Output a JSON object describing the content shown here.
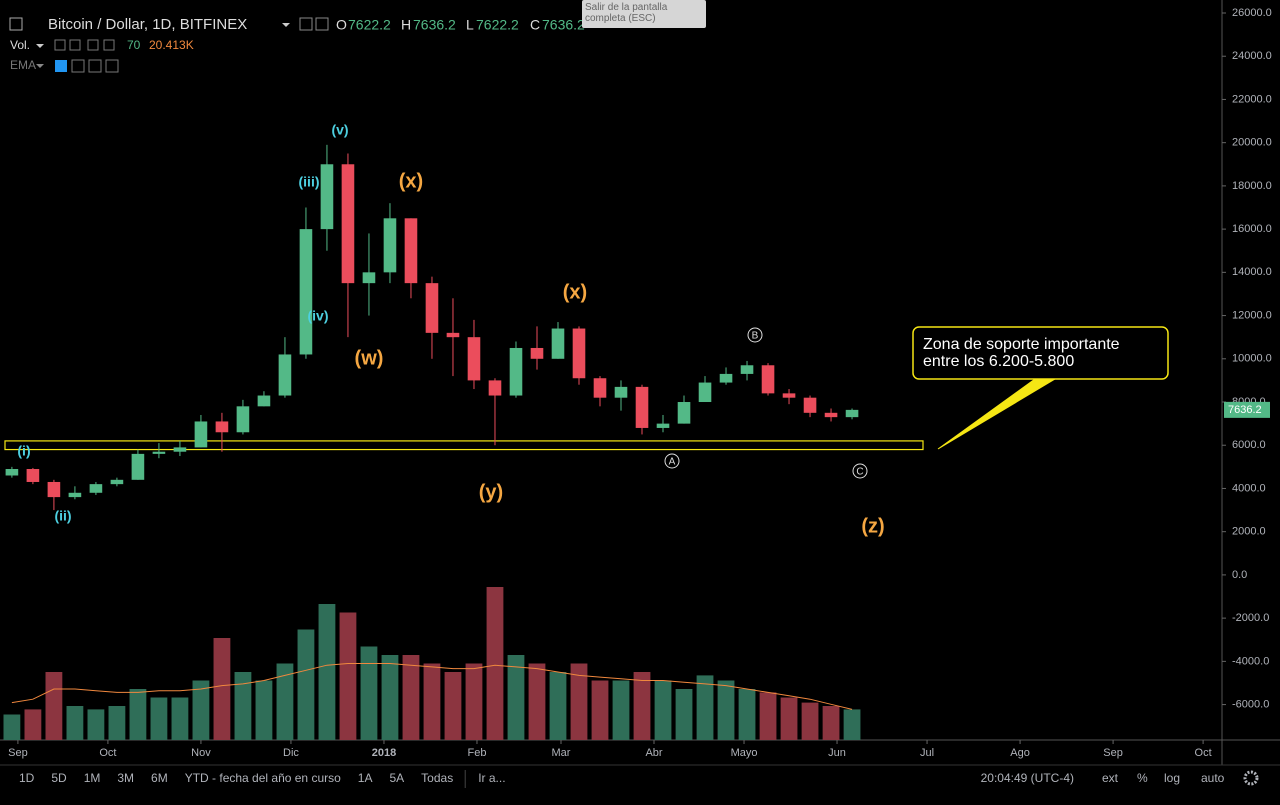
{
  "header": {
    "symbol": "Bitcoin / Dollar, 1D, BITFINEX",
    "o_label": "O",
    "open": 7622.2,
    "h_label": "H",
    "high": 7636.2,
    "l_label": "L",
    "low": 7622.2,
    "c_label": "C",
    "close": 7636.2,
    "vol_label": "Vol.",
    "vol_length": 70,
    "vol_value": "20.413K",
    "ema_label": "EMA"
  },
  "tooltip": "Salir de la pantalla completa (ESC)",
  "toolbar": {
    "ranges": [
      "1D",
      "5D",
      "1M",
      "3M",
      "6M",
      "YTD - fecha del año en curso",
      "1A",
      "5A",
      "Todas"
    ],
    "goto": "Ir a...",
    "clock": "20:04:49 (UTC-4)",
    "options": [
      "ext",
      "%",
      "log",
      "auto"
    ]
  },
  "chart_data": {
    "type": "candlestick",
    "x": [
      -2,
      5,
      12,
      19,
      26,
      33,
      40,
      47,
      54,
      61,
      68,
      75,
      82,
      89,
      96,
      103,
      110,
      117,
      124,
      131,
      138,
      145,
      152,
      159,
      166,
      173,
      180,
      187,
      194,
      201,
      208,
      215,
      222,
      229,
      236,
      243,
      250,
      257,
      264,
      271,
      278
    ],
    "open": [
      4600,
      4900,
      4300,
      3600,
      3800,
      4200,
      4400,
      5600,
      5700,
      5900,
      7100,
      6600,
      7800,
      8300,
      10200,
      16000,
      19000,
      13500,
      14000,
      16500,
      13500,
      11200,
      11000,
      9000,
      8300,
      10500,
      10000,
      11400,
      9100,
      8200,
      8700,
      6800,
      7000,
      8000,
      8900,
      9300,
      9700,
      8400,
      8200,
      7500,
      7300
    ],
    "high": [
      5000,
      4950,
      4400,
      4100,
      4300,
      4500,
      5800,
      6100,
      6200,
      7400,
      7500,
      8100,
      8500,
      11000,
      17000,
      19900,
      19500,
      15800,
      17200,
      16500,
      13800,
      12800,
      11800,
      9100,
      10800,
      11500,
      11700,
      11500,
      9200,
      9000,
      8800,
      7400,
      8300,
      9200,
      9600,
      9900,
      9800,
      8600,
      8300,
      7700,
      7700
    ],
    "low": [
      4500,
      4200,
      3000,
      3500,
      3700,
      4100,
      4400,
      5400,
      5500,
      5900,
      5700,
      6500,
      7800,
      8200,
      10000,
      15000,
      11000,
      12000,
      13500,
      12800,
      10000,
      9200,
      8600,
      6000,
      8200,
      9500,
      10000,
      8800,
      7800,
      7600,
      6500,
      6600,
      7000,
      8000,
      8800,
      9000,
      8300,
      7900,
      7300,
      7100,
      7200
    ],
    "close": [
      4900,
      4300,
      3600,
      3800,
      4200,
      4400,
      5600,
      5700,
      5900,
      7100,
      6600,
      7800,
      8300,
      10200,
      16000,
      19000,
      13500,
      14000,
      16500,
      13500,
      11200,
      11000,
      9000,
      8300,
      10500,
      10000,
      11400,
      9100,
      8200,
      8700,
      6800,
      7000,
      8000,
      8900,
      9300,
      9700,
      8400,
      8200,
      7500,
      7300,
      7636.2
    ],
    "volume": [
      15,
      18,
      40,
      20,
      18,
      20,
      30,
      25,
      25,
      35,
      60,
      40,
      35,
      45,
      65,
      80,
      75,
      55,
      50,
      50,
      45,
      40,
      45,
      90,
      50,
      45,
      40,
      45,
      35,
      35,
      40,
      35,
      30,
      38,
      35,
      30,
      28,
      25,
      22,
      20,
      18
    ],
    "volume_ma": [
      22,
      24,
      30,
      30,
      29,
      28,
      28,
      29,
      29,
      30,
      32,
      33,
      35,
      38,
      41,
      44,
      45,
      45,
      45,
      44,
      43,
      42,
      42,
      44,
      43,
      42,
      40,
      38,
      37,
      36,
      35,
      35,
      34,
      33,
      32,
      30,
      28,
      26,
      24,
      21,
      18
    ],
    "up_color": "#53b987",
    "down_color": "#eb4d5c",
    "volume_up_color": "#2f6e58",
    "volume_down_color": "#8c3540",
    "volume_ma_color": "#f0883e",
    "xlim": [
      -4.3,
      401.3
    ],
    "xticks": [
      {
        "value": 0,
        "label": "Sep"
      },
      {
        "value": 30,
        "label": "Oct"
      },
      {
        "value": 61,
        "label": "Nov"
      },
      {
        "value": 91,
        "label": "Dic"
      },
      {
        "value": 122,
        "label": "2018"
      },
      {
        "value": 153,
        "label": "Feb"
      },
      {
        "value": 181,
        "label": "Mar"
      },
      {
        "value": 212,
        "label": "Abr"
      },
      {
        "value": 242,
        "label": "Mayo"
      },
      {
        "value": 273,
        "label": "Jun"
      },
      {
        "value": 303,
        "label": "Jul"
      },
      {
        "value": 334,
        "label": "Ago"
      },
      {
        "value": 365,
        "label": "Sep"
      },
      {
        "value": 395,
        "label": "Oct"
      }
    ],
    "ylim": [
      -7639,
      26370
    ],
    "yticks": [
      {
        "value": 26000,
        "label": "26000.0"
      },
      {
        "value": 24000,
        "label": "24000.0"
      },
      {
        "value": 22000,
        "label": "22000.0"
      },
      {
        "value": 20000,
        "label": "20000.0"
      },
      {
        "value": 18000,
        "label": "18000.0"
      },
      {
        "value": 16000,
        "label": "16000.0"
      },
      {
        "value": 14000,
        "label": "14000.0"
      },
      {
        "value": 12000,
        "label": "12000.0"
      },
      {
        "value": 10000,
        "label": "10000.0"
      },
      {
        "value": 8000,
        "label": "8000.0"
      },
      {
        "value": 6000,
        "label": "6000.0"
      },
      {
        "value": 4000,
        "label": "4000.0"
      },
      {
        "value": 2000,
        "label": "2000.0"
      },
      {
        "value": 0,
        "label": "0.0"
      },
      {
        "value": -2000,
        "label": "-2000.0"
      },
      {
        "value": -4000,
        "label": "-4000.0"
      },
      {
        "value": -6000,
        "label": "-6000.0"
      }
    ],
    "y2lim": [
      0,
      100
    ],
    "zone": {
      "low": 5800,
      "high": 6200,
      "color": "#f5e614"
    },
    "callout": [
      "Zona de soporte importante",
      "entre los 6.200-5.800"
    ],
    "wave_labels": [
      "(i)",
      "(ii)",
      "(iii)",
      "(iv)",
      "(v)",
      "(w)",
      "(x)",
      "(y)",
      "(x)",
      "(z)"
    ],
    "wave_colors": [
      "#4dd0e1",
      "#4dd0e1",
      "#4dd0e1",
      "#4dd0e1",
      "#4dd0e1",
      "#f5a742",
      "#f5a742",
      "#f5a742",
      "#f5a742",
      "#f5a742"
    ],
    "abc_labels": [
      "A",
      "B",
      "C"
    ]
  }
}
